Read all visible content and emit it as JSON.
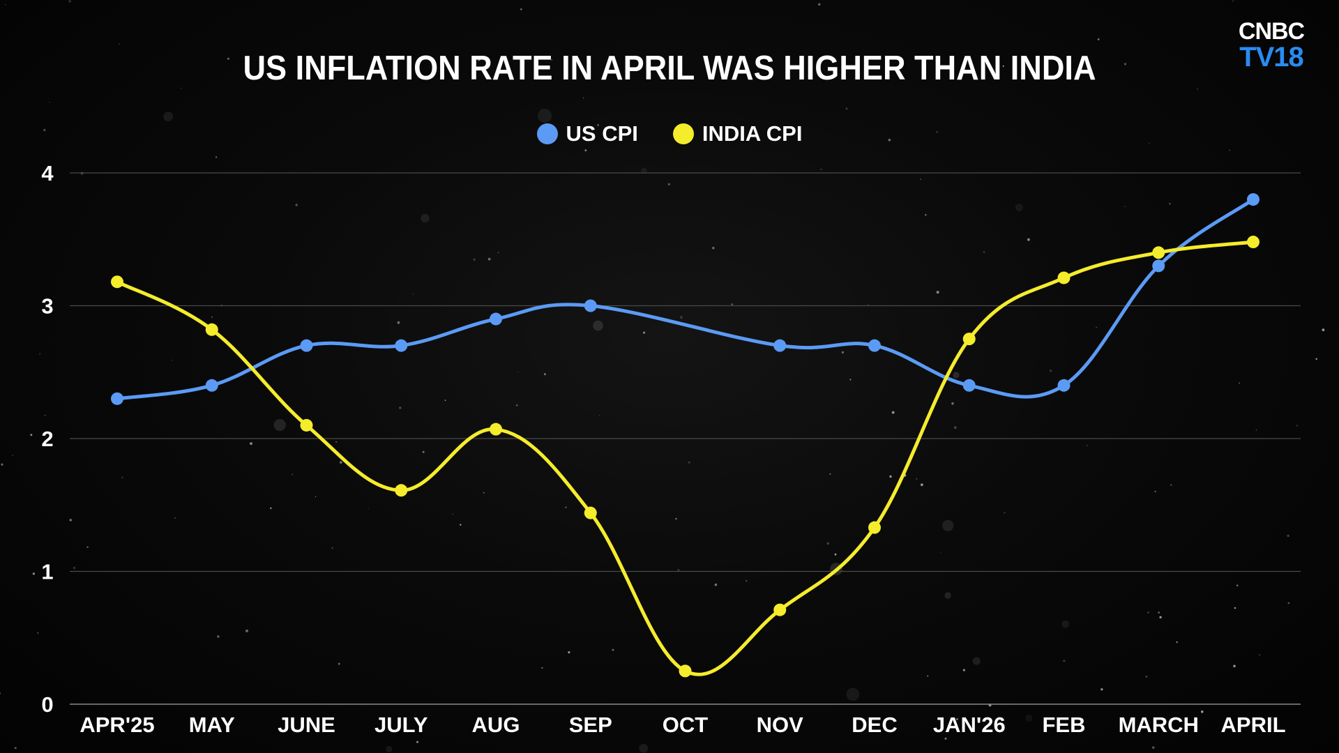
{
  "brand": {
    "top": "CNBC",
    "bottom": "TV18",
    "accent_color": "#2a8bf2"
  },
  "chart_data": {
    "type": "line",
    "title": "US INFLATION RATE IN APRIL WAS HIGHER THAN INDIA",
    "categories": [
      "APR'25",
      "MAY",
      "JUNE",
      "JULY",
      "AUG",
      "SEP",
      "OCT",
      "NOV",
      "DEC",
      "JAN'26",
      "FEB",
      "MARCH",
      "APRIL"
    ],
    "series": [
      {
        "name": "US CPI",
        "color": "#5b9bf5",
        "values": [
          2.3,
          2.4,
          2.7,
          2.7,
          2.9,
          3.0,
          null,
          2.7,
          2.7,
          2.4,
          2.4,
          3.3,
          3.8
        ]
      },
      {
        "name": "INDIA CPI",
        "color": "#f5ec2c",
        "values": [
          3.18,
          2.82,
          2.1,
          1.61,
          2.07,
          1.44,
          0.25,
          0.71,
          1.33,
          2.75,
          3.21,
          3.4,
          3.48
        ]
      }
    ],
    "ylim": [
      0,
      4
    ],
    "yticks": [
      "0",
      "1",
      "2",
      "3",
      "4"
    ],
    "xlabel": "",
    "ylabel": "",
    "grid": "horizontal",
    "legend": "top-center",
    "background": "#050505"
  }
}
